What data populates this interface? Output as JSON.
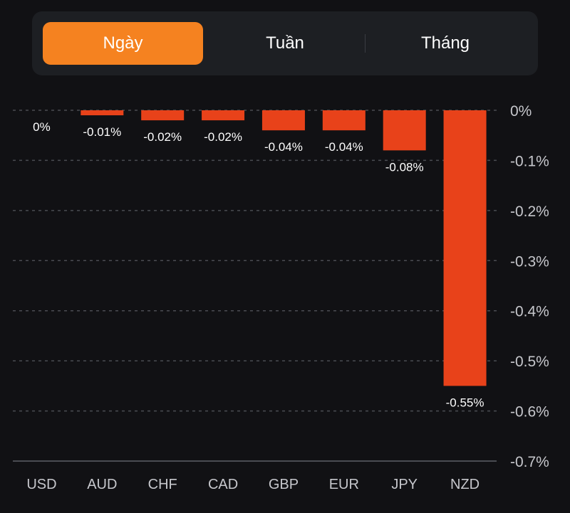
{
  "tabs": {
    "items": [
      {
        "label": "Ngày",
        "active": true
      },
      {
        "label": "Tuần",
        "active": false
      },
      {
        "label": "Tháng",
        "active": false
      }
    ]
  },
  "colors": {
    "accent": "#f58220",
    "bar": "#e8421a",
    "background": "#111114",
    "panel": "#1d1f23"
  },
  "chart_data": {
    "type": "bar",
    "title": "",
    "xlabel": "",
    "ylabel": "",
    "categories": [
      "USD",
      "AUD",
      "CHF",
      "CAD",
      "GBP",
      "EUR",
      "JPY",
      "NZD"
    ],
    "values": [
      0,
      -0.01,
      -0.02,
      -0.02,
      -0.04,
      -0.04,
      -0.08,
      -0.55
    ],
    "data_labels": [
      "0%",
      "-0.01%",
      "-0.02%",
      "-0.02%",
      "-0.04%",
      "-0.04%",
      "-0.08%",
      "-0.55%"
    ],
    "ylim": [
      -0.7,
      0
    ],
    "yticks": [
      0,
      -0.1,
      -0.2,
      -0.3,
      -0.4,
      -0.5,
      -0.6,
      -0.7
    ],
    "ytick_labels": [
      "0%",
      "-0.1%",
      "-0.2%",
      "-0.3%",
      "-0.4%",
      "-0.5%",
      "-0.6%",
      "-0.7%"
    ],
    "y_axis_position": "right",
    "grid": true,
    "legend": "none"
  }
}
